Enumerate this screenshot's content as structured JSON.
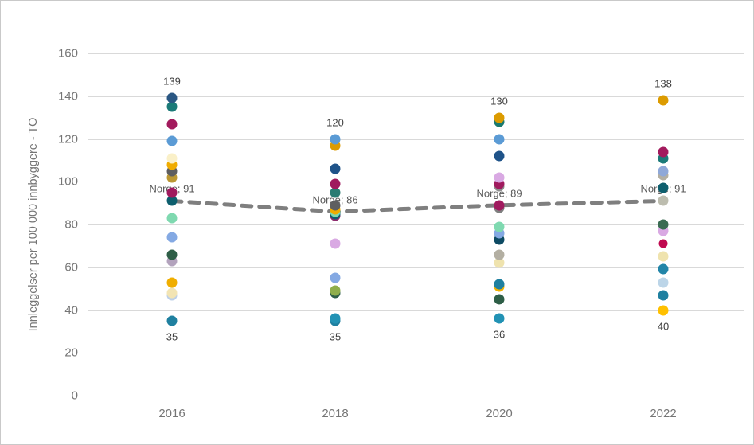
{
  "chart_data": {
    "type": "scatter",
    "title": "",
    "ylabel": "Innleggelser per 100 000 innbyggere - TO",
    "xlabel": "",
    "ylim": [
      0,
      160
    ],
    "ytick_step": 20,
    "y_ticks": [
      "0",
      "20",
      "40",
      "60",
      "80",
      "100",
      "120",
      "140",
      "160"
    ],
    "grid": "horizontal",
    "legend": "none",
    "categories": [
      "2016",
      "2018",
      "2020",
      "2022"
    ],
    "norge_line": {
      "name": "Norge",
      "values": [
        91,
        86,
        89,
        91
      ],
      "labels": [
        "Norge; 91",
        "Norge; 86",
        "Norge; 89",
        "Norge; 91"
      ],
      "color": "#7f7f7f",
      "style": "dashed"
    },
    "series": [
      {
        "year": "2016",
        "max_label": "139",
        "min_label": "35",
        "points": [
          {
            "v": 35,
            "c": "#1f80a0"
          },
          {
            "v": 47,
            "c": "#bccfe8"
          },
          {
            "v": 48,
            "c": "#f2e4b3"
          },
          {
            "v": 53,
            "c": "#f0ae00"
          },
          {
            "v": 63,
            "c": "#b3a3bd"
          },
          {
            "v": 66,
            "c": "#2e5e47"
          },
          {
            "v": 74,
            "c": "#84a9e3"
          },
          {
            "v": 83,
            "c": "#7fd9b0"
          },
          {
            "v": 91,
            "c": "#0e5f6e"
          },
          {
            "v": 95,
            "c": "#a01a5e"
          },
          {
            "v": 102,
            "c": "#bb9733"
          },
          {
            "v": 105,
            "c": "#5e5e60"
          },
          {
            "v": 108,
            "c": "#f0ac00"
          },
          {
            "v": 111,
            "c": "#faf0c8"
          },
          {
            "v": 119,
            "c": "#5b9bd5"
          },
          {
            "v": 127,
            "c": "#a21a5d"
          },
          {
            "v": 135,
            "c": "#1b7a78"
          },
          {
            "v": 139,
            "c": "#2a5783"
          }
        ]
      },
      {
        "year": "2018",
        "max_label": "120",
        "min_label": "35",
        "points": [
          {
            "v": 35,
            "c": "#1f80a0"
          },
          {
            "v": 36,
            "c": "#2292b4"
          },
          {
            "v": 48,
            "c": "#2e5e47"
          },
          {
            "v": 49,
            "c": "#8fae4b"
          },
          {
            "v": 55,
            "c": "#84a9e3"
          },
          {
            "v": 71,
            "c": "#d9a9e3"
          },
          {
            "v": 84,
            "c": "#8e2c6e"
          },
          {
            "v": 85,
            "c": "#0e5f6e"
          },
          {
            "v": 86,
            "c": "#7fd9b0"
          },
          {
            "v": 87,
            "c": "#f0ac00"
          },
          {
            "v": 89,
            "c": "#5e5e60"
          },
          {
            "v": 95,
            "c": "#2a7b72"
          },
          {
            "v": 99,
            "c": "#a01a5e"
          },
          {
            "v": 106,
            "c": "#1f5389"
          },
          {
            "v": 117,
            "c": "#dc9b00"
          },
          {
            "v": 120,
            "c": "#5b9bd5"
          }
        ]
      },
      {
        "year": "2020",
        "max_label": "130",
        "min_label": "36",
        "points": [
          {
            "v": 36,
            "c": "#2292b4"
          },
          {
            "v": 45,
            "c": "#2e5e47"
          },
          {
            "v": 51,
            "c": "#f0b000"
          },
          {
            "v": 52,
            "c": "#1f80a0"
          },
          {
            "v": 62,
            "c": "#efe3ae"
          },
          {
            "v": 66,
            "c": "#b3afa2"
          },
          {
            "v": 73,
            "c": "#0d4a63"
          },
          {
            "v": 76,
            "c": "#84a9e3"
          },
          {
            "v": 79,
            "c": "#7fd9b0"
          },
          {
            "v": 88,
            "c": "#7f7f7f"
          },
          {
            "v": 89,
            "c": "#a01a5e"
          },
          {
            "v": 98,
            "c": "#8c8c8c"
          },
          {
            "v": 99,
            "c": "#a01a5e"
          },
          {
            "v": 102,
            "c": "#d9a9e3"
          },
          {
            "v": 112,
            "c": "#1f5389"
          },
          {
            "v": 120,
            "c": "#5b9bd5"
          },
          {
            "v": 128,
            "c": "#1b7a6e"
          },
          {
            "v": 130,
            "c": "#dc9b00"
          }
        ]
      },
      {
        "year": "2022",
        "max_label": "138",
        "min_label": "40",
        "points": [
          {
            "v": 40,
            "c": "#ffc000"
          },
          {
            "v": 47,
            "c": "#1f80a0"
          },
          {
            "v": 53,
            "c": "#bcd5e8"
          },
          {
            "v": 59,
            "c": "#2285a8"
          },
          {
            "v": 65,
            "c": "#efe3ae"
          },
          {
            "v": 71,
            "c": "#c00a50",
            "d": 11
          },
          {
            "v": 77,
            "c": "#d9a9e3"
          },
          {
            "v": 80,
            "c": "#3a6b52"
          },
          {
            "v": 91,
            "c": "#bdbdaf"
          },
          {
            "v": 97,
            "c": "#0e5f6e"
          },
          {
            "v": 103,
            "c": "#b3afa2"
          },
          {
            "v": 105,
            "c": "#8fa8d8"
          },
          {
            "v": 111,
            "c": "#1b7a78"
          },
          {
            "v": 114,
            "c": "#a21a5d"
          },
          {
            "v": 138,
            "c": "#dc9b00"
          }
        ]
      }
    ]
  },
  "colors": {
    "gridline": "#d9d9d9",
    "tick_text": "#757575",
    "value_label_text": "#404040",
    "norge_label_text": "#595959",
    "norge_line": "#7f7f7f",
    "border": "#c9c9c9"
  }
}
